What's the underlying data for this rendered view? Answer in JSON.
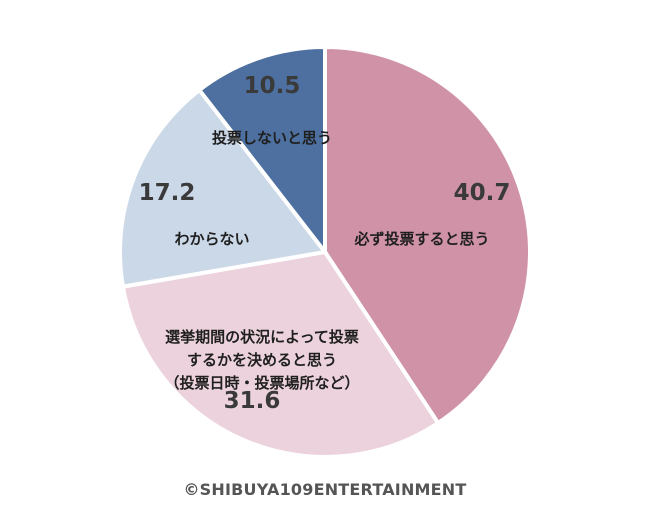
{
  "chart_data": {
    "type": "pie",
    "title": "",
    "start_angle_deg": 0,
    "direction": "clockwise",
    "slices": [
      {
        "label": "必ず投票すると思う",
        "label_lines": [
          "必ず投票すると思う"
        ],
        "value": 40.7,
        "value_text": "40.7",
        "color": "#d092a6"
      },
      {
        "label": "選挙期間の状況によって投票するかを決めると思う（投票日時・投票場所など）",
        "label_lines": [
          "選挙期間の状況によって投票",
          "するかを決めると思う",
          "（投票日時・投票場所など）"
        ],
        "value": 31.6,
        "value_text": "31.6",
        "color": "#ecd2dc"
      },
      {
        "label": "わからない",
        "label_lines": [
          "わからない"
        ],
        "value": 17.2,
        "value_text": "17.2",
        "color": "#cbd8e8"
      },
      {
        "label": "投票しないと思う",
        "label_lines": [
          "投票しないと思う"
        ],
        "value": 10.5,
        "value_text": "10.5",
        "color": "#4d70a0"
      }
    ]
  },
  "footer": {
    "copyright": "©SHIBUYA109ENTERTAINMENT"
  }
}
